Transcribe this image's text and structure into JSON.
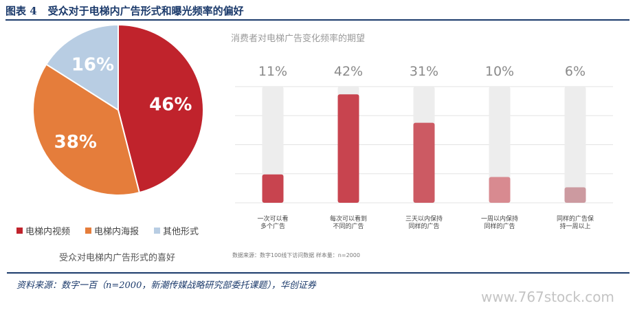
{
  "figure": {
    "number": "图表 4",
    "title": "受众对于电梯内广告形式和曝光频率的偏好"
  },
  "chart_data": [
    {
      "type": "pie",
      "title": "受众对电梯内广告形式的喜好",
      "slices": [
        {
          "name": "电梯内视频",
          "value": 46,
          "label": "46%",
          "color": "#c0232c"
        },
        {
          "name": "电梯内海报",
          "value": 38,
          "label": "38%",
          "color": "#e57d3b"
        },
        {
          "name": "其他形式",
          "value": 16,
          "label": "16%",
          "color": "#b8cde3"
        }
      ],
      "legend_position": "bottom"
    },
    {
      "type": "bar",
      "title": "消费者对电梯广告变化频率的期望",
      "categories": [
        [
          "一次可以看",
          "多个广告"
        ],
        [
          "每次可以看到",
          "不同的广告"
        ],
        [
          "三天以内保持",
          "同样的广告"
        ],
        [
          "一周以内保持",
          "同样的广告"
        ],
        [
          "同样的广告保",
          "持一周以上"
        ]
      ],
      "values": [
        11,
        42,
        31,
        10,
        6
      ],
      "value_labels": [
        "11%",
        "42%",
        "31%",
        "10%",
        "6%"
      ],
      "colors": [
        "#c8444f",
        "#c8444f",
        "#cc5a63",
        "#d88a90",
        "#cc9aa0"
      ],
      "ylim": [
        0,
        45
      ],
      "grid": true,
      "source": "数据来源：数字100线下访问数据    样本量：n=2000"
    }
  ],
  "source_note": "资料来源：数字一百（n=2000，新潮传媒战略研究部委托课题），华创证券",
  "watermark": "www.767stock.com"
}
